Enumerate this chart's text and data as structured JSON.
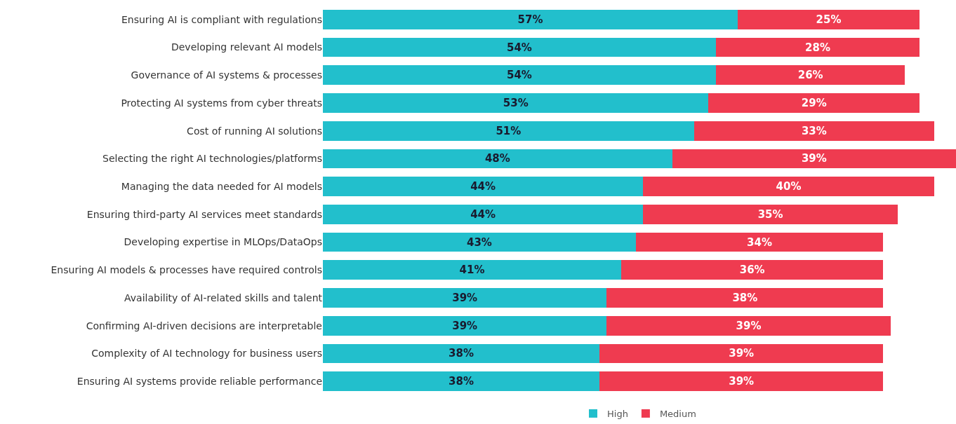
{
  "chart_data": {
    "type": "bar",
    "orientation": "horizontal",
    "stacked": true,
    "legend": "bottom",
    "grid": false,
    "tick_labels": "y",
    "categories": [
      "Ensuring AI is compliant with regulations",
      "Developing relevant AI models",
      "Governance of AI systems & processes",
      "Protecting AI systems from cyber threats",
      "Cost of running AI solutions",
      "Selecting the right AI technologies/platforms",
      "Managing the data needed for AI models",
      "Ensuring third-party AI services meet standards",
      "Developing expertise in MLOps/DataOps",
      "Ensuring AI models & processes have required controls",
      "Availability of AI-related skills and talent",
      "Confirming AI-driven decisions are interpretable",
      "Complexity of AI technology for business users",
      "Ensuring AI systems provide reliable performance"
    ],
    "series": [
      {
        "name": "High",
        "color": "#22bfcc",
        "values": [
          57,
          54,
          54,
          53,
          51,
          48,
          44,
          44,
          43,
          41,
          39,
          39,
          38,
          38
        ],
        "value_labels": [
          "57%",
          "54%",
          "54%",
          "53%",
          "51%",
          "48%",
          "44%",
          "44%",
          "43%",
          "41%",
          "39%",
          "39%",
          "38%",
          "38%"
        ]
      },
      {
        "name": "Medium",
        "color": "#ef3b50",
        "values": [
          25,
          28,
          26,
          29,
          33,
          39,
          40,
          35,
          34,
          36,
          38,
          39,
          39,
          39
        ],
        "value_labels": [
          "25%",
          "28%",
          "26%",
          "29%",
          "33%",
          "39%",
          "40%",
          "35%",
          "34%",
          "36%",
          "38%",
          "39%",
          "39%",
          "39%"
        ]
      }
    ]
  }
}
